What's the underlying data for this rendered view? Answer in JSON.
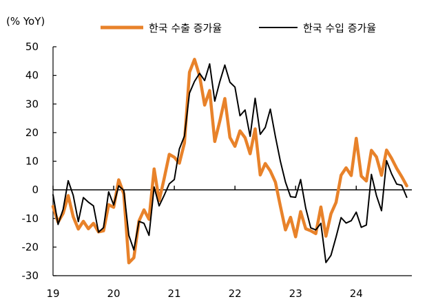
{
  "chart_data": {
    "type": "line",
    "unit_label": "(% YoY)",
    "legend_placement": "top",
    "grid": false,
    "ylim": [
      -30,
      50
    ],
    "y_ticks": [
      -30,
      -20,
      -10,
      0,
      10,
      20,
      30,
      40,
      50
    ],
    "xlim": [
      2019.0,
      2024.917
    ],
    "x_ticks": [
      {
        "value": 2019,
        "label": "19"
      },
      {
        "value": 2020,
        "label": "20"
      },
      {
        "value": 2021,
        "label": "21"
      },
      {
        "value": 2022,
        "label": "22"
      },
      {
        "value": 2023,
        "label": "23"
      },
      {
        "value": 2024,
        "label": "24"
      }
    ],
    "series": [
      {
        "name": "한국 수출 증가율",
        "color": "#E8822A",
        "style": "thick",
        "values": [
          [
            2019.0,
            -5.8
          ],
          [
            2019.083,
            -11.3
          ],
          [
            2019.167,
            -8.2
          ],
          [
            2019.25,
            -2.0
          ],
          [
            2019.333,
            -9.4
          ],
          [
            2019.417,
            -13.7
          ],
          [
            2019.5,
            -11.0
          ],
          [
            2019.583,
            -13.6
          ],
          [
            2019.667,
            -11.7
          ],
          [
            2019.75,
            -14.7
          ],
          [
            2019.833,
            -14.3
          ],
          [
            2019.917,
            -5.2
          ],
          [
            2020.0,
            -6.1
          ],
          [
            2020.083,
            3.5
          ],
          [
            2020.167,
            -1.4
          ],
          [
            2020.25,
            -25.5
          ],
          [
            2020.333,
            -23.7
          ],
          [
            2020.417,
            -10.9
          ],
          [
            2020.5,
            -7.0
          ],
          [
            2020.583,
            -10.3
          ],
          [
            2020.667,
            7.3
          ],
          [
            2020.75,
            -3.8
          ],
          [
            2020.833,
            4.0
          ],
          [
            2020.917,
            12.4
          ],
          [
            2021.0,
            11.4
          ],
          [
            2021.083,
            9.3
          ],
          [
            2021.167,
            16.4
          ],
          [
            2021.25,
            41.1
          ],
          [
            2021.333,
            45.6
          ],
          [
            2021.417,
            39.8
          ],
          [
            2021.5,
            29.6
          ],
          [
            2021.583,
            34.7
          ],
          [
            2021.667,
            16.9
          ],
          [
            2021.75,
            24.0
          ],
          [
            2021.833,
            31.9
          ],
          [
            2021.917,
            18.3
          ],
          [
            2022.0,
            15.2
          ],
          [
            2022.083,
            20.6
          ],
          [
            2022.167,
            18.2
          ],
          [
            2022.25,
            12.6
          ],
          [
            2022.333,
            21.3
          ],
          [
            2022.417,
            5.2
          ],
          [
            2022.5,
            9.2
          ],
          [
            2022.583,
            6.6
          ],
          [
            2022.667,
            2.7
          ],
          [
            2022.75,
            -5.8
          ],
          [
            2022.833,
            -14.0
          ],
          [
            2022.917,
            -9.6
          ],
          [
            2023.0,
            -16.4
          ],
          [
            2023.083,
            -7.6
          ],
          [
            2023.167,
            -13.6
          ],
          [
            2023.25,
            -14.3
          ],
          [
            2023.333,
            -15.3
          ],
          [
            2023.417,
            -6.0
          ],
          [
            2023.5,
            -16.2
          ],
          [
            2023.583,
            -8.4
          ],
          [
            2023.667,
            -4.4
          ],
          [
            2023.75,
            5.1
          ],
          [
            2023.833,
            7.7
          ],
          [
            2023.917,
            5.0
          ],
          [
            2024.0,
            18.0
          ],
          [
            2024.083,
            4.8
          ],
          [
            2024.167,
            3.1
          ],
          [
            2024.25,
            13.8
          ],
          [
            2024.333,
            11.5
          ],
          [
            2024.417,
            5.1
          ],
          [
            2024.5,
            13.9
          ],
          [
            2024.583,
            11.0
          ],
          [
            2024.667,
            7.5
          ],
          [
            2024.75,
            4.6
          ],
          [
            2024.833,
            1.4
          ]
        ]
      },
      {
        "name": "한국 수입 증가율",
        "color": "#000000",
        "style": "thin",
        "values": [
          [
            2019.0,
            -1.7
          ],
          [
            2019.083,
            -12.1
          ],
          [
            2019.167,
            -6.8
          ],
          [
            2019.25,
            3.2
          ],
          [
            2019.333,
            -1.9
          ],
          [
            2019.417,
            -11.1
          ],
          [
            2019.5,
            -2.7
          ],
          [
            2019.583,
            -4.3
          ],
          [
            2019.667,
            -5.6
          ],
          [
            2019.75,
            -14.8
          ],
          [
            2019.833,
            -13.2
          ],
          [
            2019.917,
            -0.7
          ],
          [
            2020.0,
            -5.3
          ],
          [
            2020.083,
            1.4
          ],
          [
            2020.167,
            -0.2
          ],
          [
            2020.25,
            -15.9
          ],
          [
            2020.333,
            -21.0
          ],
          [
            2020.417,
            -11.0
          ],
          [
            2020.5,
            -11.7
          ],
          [
            2020.583,
            -15.9
          ],
          [
            2020.667,
            1.0
          ],
          [
            2020.75,
            -5.6
          ],
          [
            2020.833,
            -1.9
          ],
          [
            2020.917,
            2.1
          ],
          [
            2021.0,
            3.6
          ],
          [
            2021.083,
            14.3
          ],
          [
            2021.167,
            18.8
          ],
          [
            2021.25,
            33.8
          ],
          [
            2021.333,
            37.9
          ],
          [
            2021.417,
            40.7
          ],
          [
            2021.5,
            38.2
          ],
          [
            2021.583,
            44.0
          ],
          [
            2021.667,
            31.0
          ],
          [
            2021.75,
            37.8
          ],
          [
            2021.833,
            43.6
          ],
          [
            2021.917,
            37.6
          ],
          [
            2022.0,
            35.9
          ],
          [
            2022.083,
            25.9
          ],
          [
            2022.167,
            27.9
          ],
          [
            2022.25,
            18.7
          ],
          [
            2022.333,
            32.0
          ],
          [
            2022.417,
            19.4
          ],
          [
            2022.5,
            21.8
          ],
          [
            2022.583,
            28.2
          ],
          [
            2022.667,
            18.6
          ],
          [
            2022.75,
            9.9
          ],
          [
            2022.833,
            2.7
          ],
          [
            2022.917,
            -2.4
          ],
          [
            2023.0,
            -2.6
          ],
          [
            2023.083,
            3.6
          ],
          [
            2023.167,
            -6.4
          ],
          [
            2023.25,
            -13.3
          ],
          [
            2023.333,
            -14.0
          ],
          [
            2023.417,
            -11.7
          ],
          [
            2023.5,
            -25.4
          ],
          [
            2023.583,
            -22.9
          ],
          [
            2023.667,
            -16.5
          ],
          [
            2023.75,
            -9.7
          ],
          [
            2023.833,
            -11.6
          ],
          [
            2023.917,
            -10.8
          ],
          [
            2024.0,
            -7.8
          ],
          [
            2024.083,
            -13.1
          ],
          [
            2024.167,
            -12.3
          ],
          [
            2024.25,
            5.4
          ],
          [
            2024.333,
            -2.0
          ],
          [
            2024.417,
            -7.3
          ],
          [
            2024.5,
            10.2
          ],
          [
            2024.583,
            5.6
          ],
          [
            2024.667,
            2.0
          ],
          [
            2024.75,
            1.6
          ],
          [
            2024.833,
            -2.6
          ]
        ]
      }
    ]
  }
}
